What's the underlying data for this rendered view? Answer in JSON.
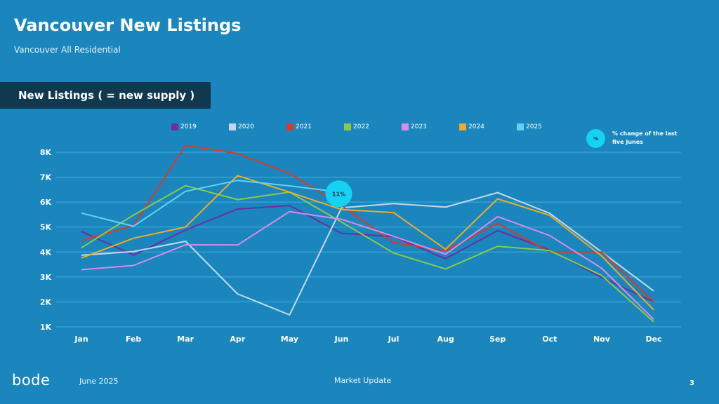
{
  "header": {
    "title": "Vancouver New Listings",
    "subtitle": "Vancouver All Residential"
  },
  "section": {
    "label": "New Listings ( = new supply )"
  },
  "note": {
    "circle_symbol": "%",
    "text": "% change of the last five Junes"
  },
  "footer": {
    "logo": "bode",
    "date": "June 2025",
    "center": "Market Update",
    "page": "3"
  },
  "chart_data": {
    "type": "line",
    "title": "",
    "xlabel": "",
    "ylabel": "",
    "categories": [
      "Jan",
      "Feb",
      "Mar",
      "Apr",
      "May",
      "Jun",
      "Jul",
      "Aug",
      "Sep",
      "Oct",
      "Nov",
      "Dec"
    ],
    "ylim": [
      1000,
      8500
    ],
    "yticks": [
      1000,
      2000,
      3000,
      4000,
      5000,
      6000,
      7000,
      8000
    ],
    "ytick_labels": [
      "1K",
      "2K",
      "3K",
      "4K",
      "5K",
      "6K",
      "7K",
      "8K"
    ],
    "grid": true,
    "legend_position": "top",
    "series": [
      {
        "name": "2019",
        "color": "#6a2fa0",
        "values": [
          4820,
          3880,
          4880,
          5720,
          5860,
          4750,
          4620,
          3730,
          4860,
          4080,
          2980,
          2000
        ]
      },
      {
        "name": "2020",
        "color": "#c3d9ea",
        "values": [
          3870,
          4020,
          4430,
          2320,
          1480,
          5770,
          5940,
          5800,
          6380,
          5550,
          4000,
          2440
        ]
      },
      {
        "name": "2021",
        "color": "#d93a2b",
        "values": [
          4460,
          5060,
          8270,
          7950,
          7150,
          5860,
          4380,
          4050,
          5150,
          4000,
          4000,
          2010
        ]
      },
      {
        "name": "2022",
        "color": "#8bc94a",
        "values": [
          4170,
          5480,
          6660,
          6100,
          6400,
          5200,
          3960,
          3320,
          4230,
          4060,
          3060,
          1200
        ]
      },
      {
        "name": "2023",
        "color": "#d98be8",
        "values": [
          3290,
          3460,
          4290,
          4280,
          5620,
          5310,
          4630,
          3910,
          5420,
          4660,
          3350,
          1300
        ]
      },
      {
        "name": "2024",
        "color": "#e8ad2c",
        "values": [
          3760,
          4550,
          5000,
          7060,
          6400,
          5700,
          5580,
          4110,
          6130,
          5470,
          3840,
          1680
        ]
      },
      {
        "name": "2025",
        "color": "#5fd4f2",
        "values": [
          5560,
          5030,
          6430,
          6870,
          6650,
          6390,
          null,
          null,
          null,
          null,
          null,
          null
        ]
      }
    ],
    "annotations": [
      {
        "text": "11%",
        "category": "Jun",
        "y": 6390,
        "color": "#15d2f2"
      }
    ]
  }
}
